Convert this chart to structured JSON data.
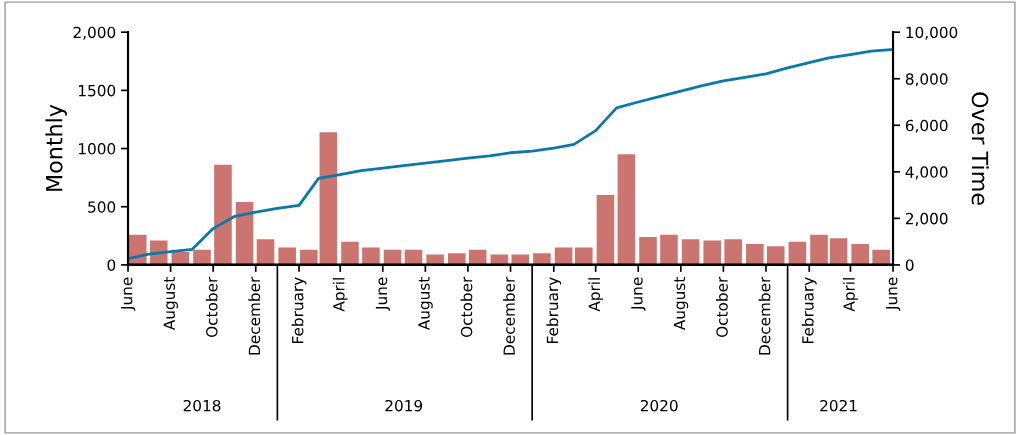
{
  "chart_data": {
    "type": "bar",
    "ylabel": "Monthly",
    "y2label": "Over Time",
    "series": [
      {
        "color": "#cc7470",
        "x": [
          "2018-06-15",
          "2018-07-15",
          "2018-08-15",
          "2018-09-15",
          "2018-10-15",
          "2018-11-15",
          "2018-12-15",
          "2019-01-15",
          "2019-02-15",
          "2019-03-15",
          "2019-04-15",
          "2019-05-15",
          "2019-06-15",
          "2019-07-15",
          "2019-08-15",
          "2019-09-15",
          "2019-10-15",
          "2019-11-15",
          "2019-12-15",
          "2020-01-15",
          "2020-02-15",
          "2020-03-15",
          "2020-04-15",
          "2020-05-15",
          "2020-06-15",
          "2020-07-15",
          "2020-08-15",
          "2020-09-15",
          "2020-10-15",
          "2020-11-15",
          "2020-12-15",
          "2021-01-15",
          "2021-02-15",
          "2021-03-15",
          "2021-04-15",
          "2021-05-15"
        ],
        "values": [
          260,
          210,
          110,
          130,
          860,
          540,
          220,
          150,
          130,
          1140,
          200,
          150,
          130,
          130,
          90,
          100,
          130,
          90,
          90,
          100,
          150,
          150,
          600,
          950,
          240,
          260,
          220,
          210,
          220,
          180,
          160,
          200,
          260,
          230,
          180,
          130
        ]
      },
      {
        "type": "line",
        "axis": "y2",
        "color": "#0a78a8",
        "x": [
          "2018-06-01",
          "2018-07-01",
          "2018-08-01",
          "2018-09-01",
          "2018-10-01",
          "2018-11-01",
          "2018-12-01",
          "2019-01-01",
          "2019-02-01",
          "2019-03-01",
          "2019-04-01",
          "2019-05-01",
          "2019-06-01",
          "2019-07-01",
          "2019-08-01",
          "2019-09-01",
          "2019-10-01",
          "2019-11-01",
          "2019-12-01",
          "2020-01-01",
          "2020-02-01",
          "2020-03-01",
          "2020-04-01",
          "2020-05-01",
          "2020-06-01",
          "2020-07-01",
          "2020-08-01",
          "2020-09-01",
          "2020-10-01",
          "2020-11-01",
          "2020-12-01",
          "2021-01-01",
          "2021-02-01",
          "2021-03-01",
          "2021-04-01",
          "2021-05-01",
          "2021-06-01"
        ],
        "values": [
          270,
          460,
          570,
          670,
          1560,
          2090,
          2270,
          2430,
          2560,
          3720,
          3880,
          4050,
          4160,
          4270,
          4370,
          4480,
          4590,
          4690,
          4820,
          4890,
          5020,
          5180,
          5770,
          6750,
          7000,
          7230,
          7470,
          7700,
          7910,
          8060,
          8210,
          8470,
          8690,
          8900,
          9040,
          9190,
          9260
        ]
      }
    ],
    "xlim": [
      "2018-06-01",
      "2021-06-01"
    ],
    "xticks": [
      {
        "value": "2018-06-01",
        "label": "June"
      },
      {
        "value": "2018-08-01",
        "label": "August"
      },
      {
        "value": "2018-10-01",
        "label": "October"
      },
      {
        "value": "2018-12-01",
        "label": "December"
      },
      {
        "value": "2019-02-01",
        "label": "February"
      },
      {
        "value": "2019-04-01",
        "label": "April"
      },
      {
        "value": "2019-06-01",
        "label": "June"
      },
      {
        "value": "2019-08-01",
        "label": "August"
      },
      {
        "value": "2019-10-01",
        "label": "October"
      },
      {
        "value": "2019-12-01",
        "label": "December"
      },
      {
        "value": "2020-02-01",
        "label": "February"
      },
      {
        "value": "2020-04-01",
        "label": "April"
      },
      {
        "value": "2020-06-01",
        "label": "June"
      },
      {
        "value": "2020-08-01",
        "label": "August"
      },
      {
        "value": "2020-10-01",
        "label": "October"
      },
      {
        "value": "2020-12-01",
        "label": "December"
      },
      {
        "value": "2021-02-01",
        "label": "February"
      },
      {
        "value": "2021-04-01",
        "label": "April"
      },
      {
        "value": "2021-06-01",
        "label": "June"
      }
    ],
    "ylim": [
      0,
      2000
    ],
    "yticks": [
      0,
      500,
      1000,
      1500,
      {
        "value": 2000,
        "label": "2,000"
      }
    ],
    "y2lim": [
      0,
      10000
    ],
    "y2ticks": [
      0,
      {
        "value": 2000,
        "label": "2,000"
      },
      {
        "value": 4000,
        "label": "4,000"
      },
      {
        "value": 6000,
        "label": "6,000"
      },
      {
        "value": 8000,
        "label": "8,000"
      },
      {
        "value": 10000,
        "label": "10,000"
      }
    ],
    "x2lim": [
      "2018-06-01",
      "2021-06-01"
    ],
    "x2ticks": [
      {
        "value": "2018-09-15",
        "label": "2018"
      },
      {
        "value": "2019-07-01",
        "label": "2019"
      },
      {
        "value": "2020-07-01",
        "label": "2020"
      },
      {
        "value": "2021-03-15",
        "label": "2021"
      }
    ]
  }
}
